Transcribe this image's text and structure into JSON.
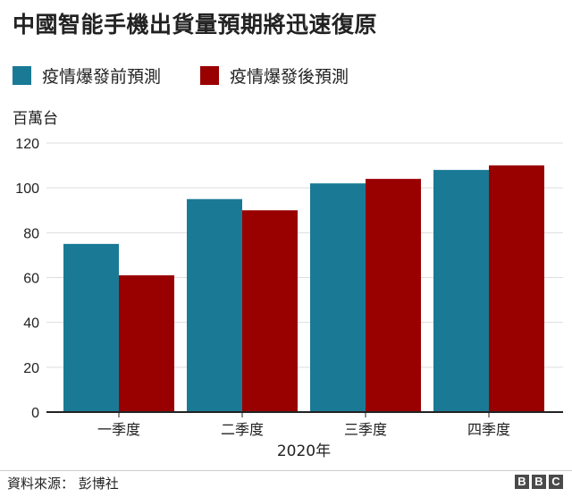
{
  "title": "中國智能手機出貨量預期將迅速復原",
  "unit_label": "百萬台",
  "source": "資料來源： 彭博社",
  "logo": [
    "B",
    "B",
    "C"
  ],
  "colors": {
    "before": "#1a7a96",
    "after": "#990000",
    "axis": "#222222",
    "grid": "#dddddd",
    "text": "#222222"
  },
  "chart_data": {
    "type": "bar",
    "title": "中國智能手機出貨量預期將迅速復原",
    "ylabel": "百萬台",
    "xlabel": "2020年",
    "categories": [
      "一季度",
      "二季度",
      "三季度",
      "四季度"
    ],
    "series": [
      {
        "name": "疫情爆發前預測",
        "values": [
          75,
          95,
          102,
          108
        ]
      },
      {
        "name": "疫情爆發後預測",
        "values": [
          61,
          90,
          104,
          110
        ]
      }
    ],
    "ylim": [
      0,
      120
    ],
    "yticks": [
      0,
      20,
      40,
      60,
      80,
      100,
      120
    ],
    "grid": true,
    "legend_position": "top-left"
  }
}
